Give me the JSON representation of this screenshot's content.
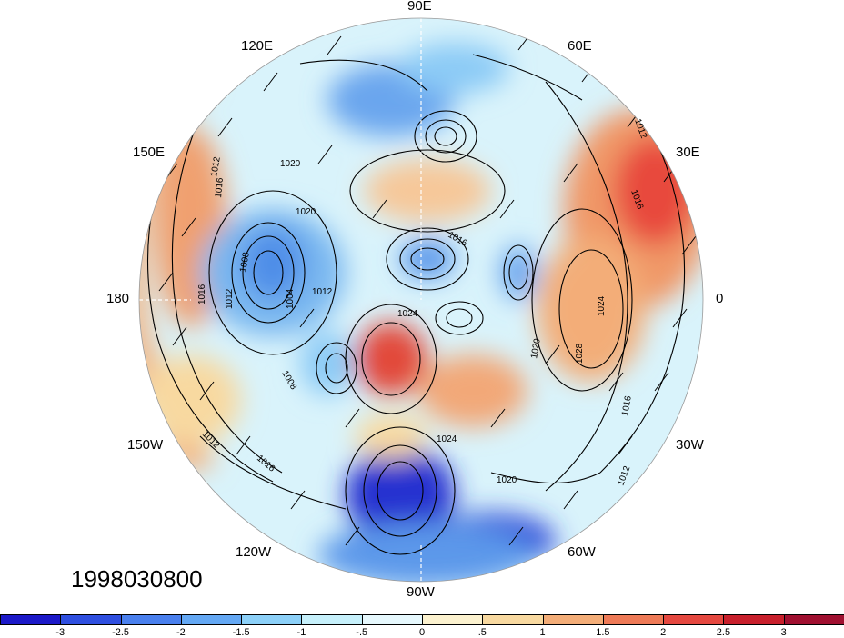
{
  "map": {
    "projection": "north-polar-stereographic",
    "longitude_labels": {
      "top": "90E",
      "top_left": "120E",
      "top_right": "60E",
      "upper_left": "150E",
      "upper_right": "30E",
      "left": "180",
      "right": "0",
      "lower_left": "150W",
      "lower_right": "30W",
      "bottom_left": "120W",
      "bottom_right": "60W",
      "bottom": "90W"
    },
    "contour_labels": [
      "1012",
      "1016",
      "1020",
      "1020",
      "1008",
      "1012",
      "1004",
      "1012",
      "1016",
      "1024",
      "1016",
      "1020",
      "1024",
      "1008",
      "1012",
      "1016",
      "1020",
      "1028",
      "1016",
      "1012",
      "1012",
      "1016",
      "1024"
    ]
  },
  "timestamp": "1998030800",
  "colorbar": {
    "levels": [
      "-3",
      "-2.5",
      "-2",
      "-1.5",
      "-1",
      "-.5",
      "0",
      ".5",
      "1",
      "1.5",
      "2",
      "2.5",
      "3"
    ],
    "colors": [
      "#1c19c8",
      "#2f4fe0",
      "#4a80ee",
      "#64a8f4",
      "#8cd0f8",
      "#c6f0fb",
      "#e6f8fd",
      "#fcf2cf",
      "#f8d9a0",
      "#f3ad78",
      "#ee7a57",
      "#e54840",
      "#c8202c",
      "#a01030"
    ]
  }
}
